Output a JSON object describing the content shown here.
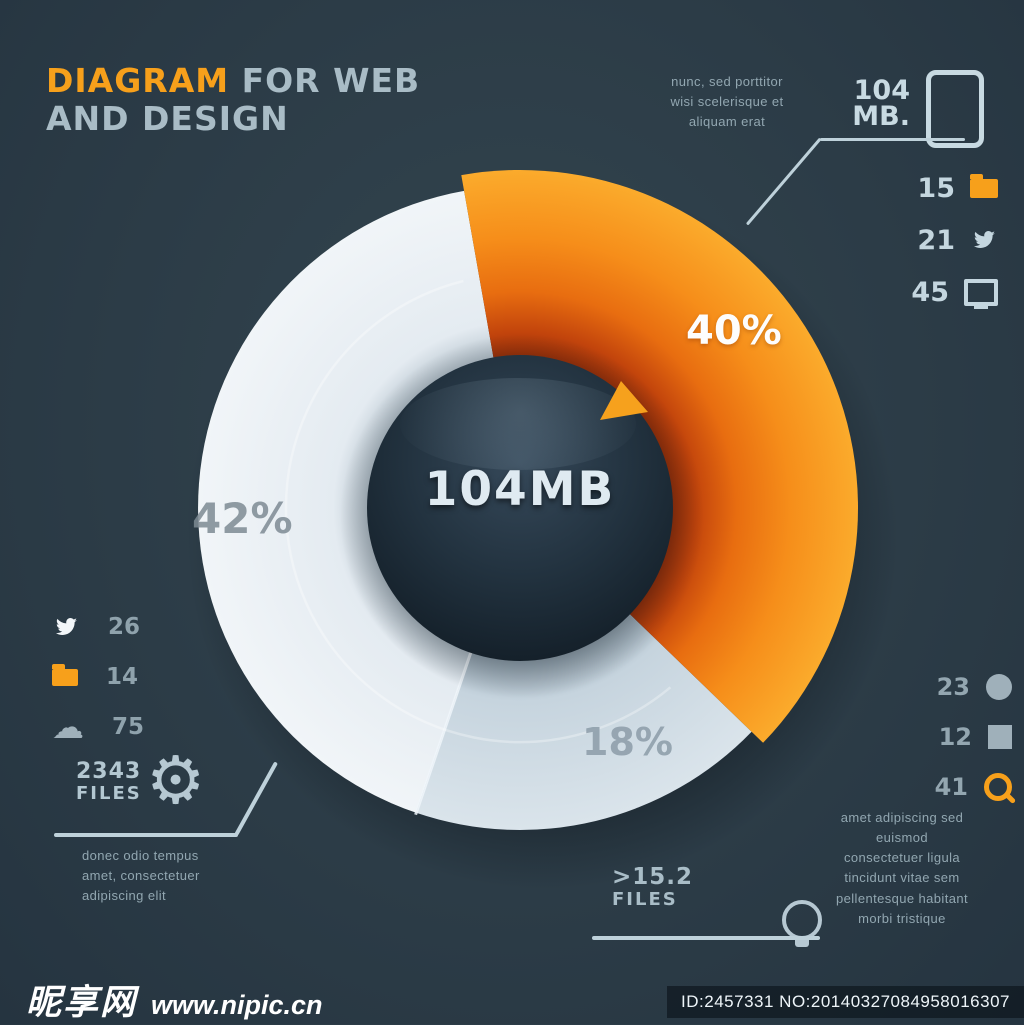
{
  "title": {
    "line1_highlight": "DIAGRAM",
    "line1_rest": " FOR WEB",
    "line2": "AND DESIGN"
  },
  "chart_data": {
    "type": "pie",
    "title": "DIAGRAM FOR WEB AND DESIGN",
    "center_label": "104MB",
    "start_angle_deg": -10,
    "legend_position": "none",
    "segments": [
      {
        "name": "featured",
        "label": "40%",
        "value": 40,
        "color": "#f68e1a",
        "pop_out": true
      },
      {
        "name": "lower",
        "label": "18%",
        "value": 18,
        "color": "#c6d4de",
        "pop_out": false
      },
      {
        "name": "left",
        "label": "42%",
        "value": 42,
        "color": "#e9eff4",
        "pop_out": false
      }
    ],
    "callouts": [
      {
        "stat": "104 MB",
        "items": [
          "15",
          "21",
          "45"
        ]
      },
      {
        "items": [
          "26",
          "14",
          "75"
        ]
      },
      {
        "stat": "2343 FILES"
      },
      {
        "stat": ">15.2 FILES"
      },
      {
        "items": [
          "23",
          "12",
          "41"
        ]
      }
    ]
  },
  "annotations": {
    "top_right": {
      "lines": [
        "nunc, sed porttitor",
        "wisi scelerisque et",
        "aliquam erat"
      ],
      "stat_value": "104",
      "stat_unit": "MB.",
      "legend": [
        {
          "value": "15",
          "icon": "folder-icon"
        },
        {
          "value": "21",
          "icon": "bird-icon"
        },
        {
          "value": "45",
          "icon": "monitor-icon"
        }
      ]
    },
    "left_legend": [
      {
        "value": "26",
        "icon": "bird-icon"
      },
      {
        "value": "14",
        "icon": "folder-icon"
      },
      {
        "value": "75",
        "icon": "cloud-icon"
      }
    ],
    "bottom_left": {
      "stat": "2343",
      "stat_label": "FILES",
      "icon": "gear-icon",
      "lines": [
        "donec odio tempus",
        "amet, consectetuer",
        "adipiscing elit"
      ]
    },
    "bottom_center": {
      "stat": ">15.2",
      "stat_label": "FILES",
      "icon": "bulb-icon"
    },
    "bottom_right": {
      "legend": [
        {
          "value": "23",
          "icon": "circle-icon"
        },
        {
          "value": "12",
          "icon": "square-icon"
        },
        {
          "value": "41",
          "icon": "search-icon"
        }
      ],
      "lines": [
        "amet adipiscing sed",
        "euismod",
        "consectetuer ligula",
        "tincidunt vitae sem",
        "pellentesque habitant",
        "morbi tristique"
      ]
    }
  },
  "watermark": {
    "site_name": "昵享网",
    "site_url": "www.nipic.cn",
    "id_text": "ID:2457331 NO:20140327084958016307"
  },
  "colors": {
    "background": "#2c3b45",
    "accent_orange": "#f7a01b",
    "light_segment": "#e9eff4",
    "text_light": "#b9cdd6",
    "sphere": "#1d2b36"
  }
}
